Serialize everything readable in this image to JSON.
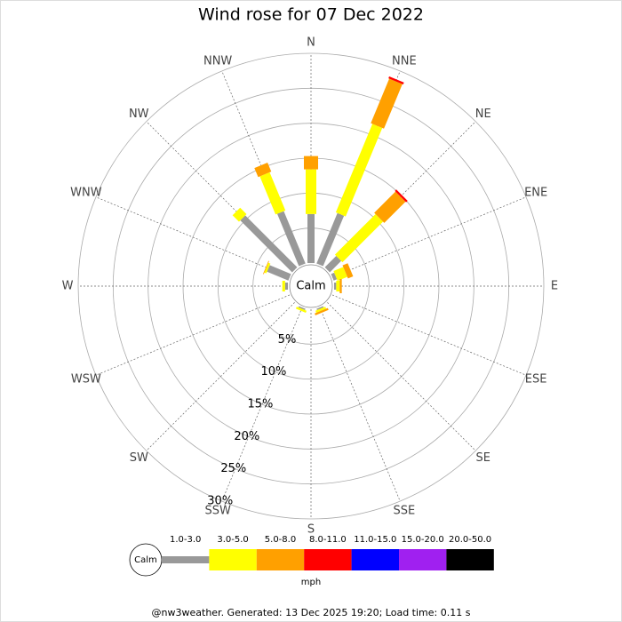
{
  "chart_data": {
    "type": "windrose",
    "title": "Wind rose for 07 Dec 2022",
    "directions": [
      "N",
      "NNE",
      "NE",
      "ENE",
      "E",
      "ESE",
      "SE",
      "SSE",
      "S",
      "SSW",
      "SW",
      "WSW",
      "W",
      "WNW",
      "NW",
      "NNW"
    ],
    "rlim": [
      0,
      30
    ],
    "rticks": [
      {
        "value": 5,
        "label": "5%"
      },
      {
        "value": 10,
        "label": "10%"
      },
      {
        "value": 15,
        "label": "15%"
      },
      {
        "value": 20,
        "label": "20%"
      },
      {
        "value": 25,
        "label": "25%"
      },
      {
        "value": 30,
        "label": "30%"
      }
    ],
    "calm_label": "Calm",
    "unit": "mph",
    "series": [
      {
        "name": "1.0-3.0",
        "color": "#999999",
        "values": [
          7.0,
          7.8,
          2.3,
          0.5,
          0.3,
          0,
          0,
          0.2,
          0,
          0.2,
          0,
          0,
          0.4,
          3.3,
          10.5,
          8.1
        ]
      },
      {
        "name": "3.0-5.0",
        "color": "#ffff00",
        "values": [
          6.4,
          13.7,
          8.2,
          1.5,
          0.5,
          0,
          0,
          0.3,
          0,
          0.3,
          0,
          0,
          0.4,
          0.3,
          1.3,
          5.9
        ]
      },
      {
        "name": "5.0-8.0",
        "color": "#ffa000",
        "values": [
          1.9,
          6.9,
          4.3,
          0.8,
          0.3,
          0,
          0,
          0.3,
          0,
          0,
          0,
          0,
          0,
          0.1,
          0,
          1.4
        ]
      },
      {
        "name": "8.0-11.0",
        "color": "#ff0000",
        "values": [
          0,
          0.3,
          0.3,
          0,
          0,
          0,
          0,
          0,
          0,
          0,
          0,
          0,
          0,
          0,
          0,
          0
        ]
      },
      {
        "name": "11.0-15.0",
        "color": "#0000ff",
        "values": [
          0,
          0,
          0,
          0,
          0,
          0,
          0,
          0,
          0,
          0,
          0,
          0,
          0,
          0,
          0,
          0
        ]
      },
      {
        "name": "15.0-20.0",
        "color": "#a020f0",
        "values": [
          0,
          0,
          0,
          0,
          0,
          0,
          0,
          0,
          0,
          0,
          0,
          0,
          0,
          0,
          0,
          0
        ]
      },
      {
        "name": "20.0-50.0",
        "color": "#000000",
        "values": [
          0,
          0,
          0,
          0,
          0,
          0,
          0,
          0,
          0,
          0,
          0,
          0,
          0,
          0,
          0,
          0
        ]
      }
    ],
    "footer": "@nw3weather. Generated: 13 Dec 2025 19:20; Load time: 0.11 s"
  }
}
